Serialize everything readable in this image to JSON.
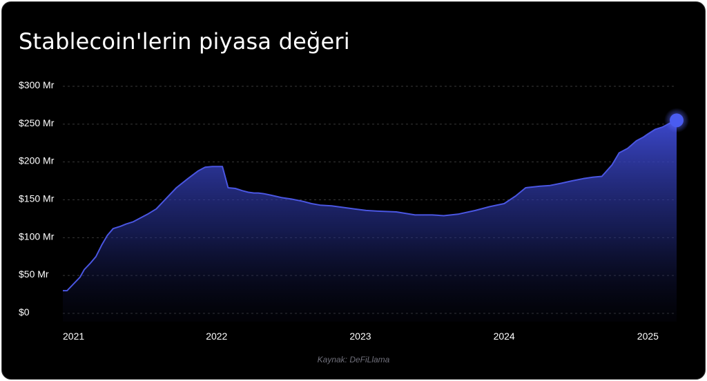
{
  "chart_data": {
    "type": "area",
    "title": "Stablecoin'lerin piyasa değeri",
    "source": "Kaynak: DeFiLlama",
    "xlabel": "",
    "ylabel": "",
    "y_ticks": [
      "$0",
      "$50 Mr",
      "$100 Mr",
      "$150 Mr",
      "$200 Mr",
      "$250 Mr",
      "$300 Mr"
    ],
    "y_tick_values": [
      0,
      50,
      100,
      150,
      200,
      250,
      300
    ],
    "x_ticks": [
      "2021",
      "2022",
      "2023",
      "2024",
      "2025"
    ],
    "x_tick_values": [
      2021.0,
      2022.0,
      2023.0,
      2024.0,
      2025.0
    ],
    "ylim": [
      0,
      300
    ],
    "xlim": [
      2020.93,
      2025.2
    ],
    "grid": true,
    "legend": "none",
    "colors": {
      "line": "#4a56e2",
      "fill_top": "#3f4bd6",
      "marker": "#4a5cf0",
      "grid": "#3a3a3a"
    },
    "series": [
      {
        "x": [
          2020.93,
          2020.96,
          2021.0,
          2021.05,
          2021.08,
          2021.12,
          2021.16,
          2021.2,
          2021.24,
          2021.28,
          2021.33,
          2021.37,
          2021.42,
          2021.47,
          2021.52,
          2021.58,
          2021.65,
          2021.72,
          2021.8,
          2021.87,
          2021.92,
          2021.97,
          2022.04,
          2022.08,
          2022.13,
          2022.18,
          2022.22,
          2022.26,
          2022.29,
          2022.33,
          2022.38,
          2022.45,
          2022.52,
          2022.6,
          2022.66,
          2022.72,
          2022.8,
          2022.88,
          2022.96,
          2023.04,
          2023.12,
          2023.25,
          2023.38,
          2023.5,
          2023.58,
          2023.68,
          2023.8,
          2023.9,
          2024.0,
          2024.08,
          2024.15,
          2024.25,
          2024.32,
          2024.4,
          2024.47,
          2024.55,
          2024.62,
          2024.68,
          2024.75,
          2024.8,
          2024.86,
          2024.92,
          2024.97,
          2025.0,
          2025.05,
          2025.1,
          2025.15,
          2025.2
        ],
        "values": [
          30,
          30,
          38,
          48,
          58,
          66,
          75,
          90,
          103,
          112,
          115,
          118,
          121,
          126,
          131,
          138,
          152,
          166,
          178,
          188,
          193,
          194,
          194,
          166,
          165,
          162,
          160,
          159,
          159,
          158,
          156,
          153,
          151,
          148,
          145,
          143,
          142,
          140,
          138,
          136,
          135,
          134,
          130,
          130,
          129,
          131,
          136,
          141,
          145,
          155,
          166,
          168,
          169,
          172,
          175,
          178,
          180,
          181,
          196,
          212,
          218,
          228,
          233,
          237,
          243,
          246,
          251,
          255
        ]
      }
    ]
  }
}
